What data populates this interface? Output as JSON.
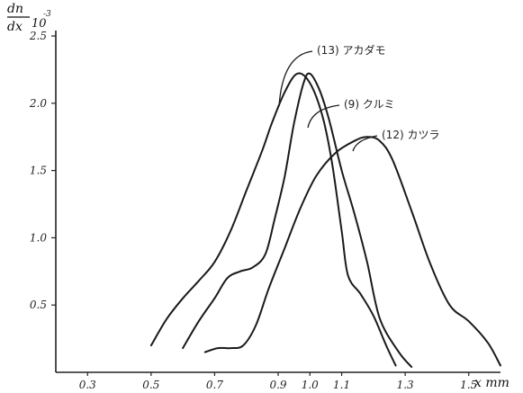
{
  "chart_data": {
    "type": "line",
    "title": "",
    "ylabel_num": "dn",
    "ylabel_den": "dx",
    "ylabel_exp": "10",
    "ylabel_exp_sup": "-3",
    "xlabel": "x mm",
    "xlim": [
      0.2,
      1.6
    ],
    "ylim": [
      0,
      2.5
    ],
    "x_ticks": [
      "0.3",
      "0.5",
      "0.7",
      "0.9",
      "1.0",
      "1.1",
      "1.3",
      "1.5"
    ],
    "y_ticks": [
      "0.5",
      "1.0",
      "1.5",
      "2.0",
      "2.5"
    ],
    "y_tick_display": [
      "0.5",
      "1.0",
      "1.5",
      "2.0",
      "2.5"
    ],
    "grid": false,
    "series": [
      {
        "name": "(13) アカダモ",
        "points": [
          [
            0.5,
            0.2
          ],
          [
            0.55,
            0.4
          ],
          [
            0.6,
            0.55
          ],
          [
            0.65,
            0.68
          ],
          [
            0.7,
            0.82
          ],
          [
            0.75,
            1.05
          ],
          [
            0.8,
            1.35
          ],
          [
            0.85,
            1.65
          ],
          [
            0.88,
            1.85
          ],
          [
            0.92,
            2.08
          ],
          [
            0.96,
            2.22
          ],
          [
            1.0,
            2.15
          ],
          [
            1.04,
            1.9
          ],
          [
            1.07,
            1.55
          ],
          [
            1.1,
            1.05
          ],
          [
            1.12,
            0.72
          ],
          [
            1.16,
            0.58
          ],
          [
            1.2,
            0.42
          ],
          [
            1.24,
            0.2
          ],
          [
            1.27,
            0.05
          ]
        ]
      },
      {
        "name": "(9) クルミ",
        "points": [
          [
            0.6,
            0.18
          ],
          [
            0.65,
            0.38
          ],
          [
            0.7,
            0.55
          ],
          [
            0.74,
            0.7
          ],
          [
            0.78,
            0.75
          ],
          [
            0.82,
            0.78
          ],
          [
            0.86,
            0.88
          ],
          [
            0.89,
            1.15
          ],
          [
            0.92,
            1.45
          ],
          [
            0.95,
            1.85
          ],
          [
            0.98,
            2.15
          ],
          [
            1.0,
            2.22
          ],
          [
            1.03,
            2.1
          ],
          [
            1.06,
            1.88
          ],
          [
            1.1,
            1.5
          ],
          [
            1.14,
            1.18
          ],
          [
            1.18,
            0.82
          ],
          [
            1.22,
            0.4
          ],
          [
            1.28,
            0.15
          ],
          [
            1.32,
            0.04
          ]
        ]
      },
      {
        "name": "(12) カツラ",
        "points": [
          [
            0.67,
            0.15
          ],
          [
            0.71,
            0.18
          ],
          [
            0.75,
            0.18
          ],
          [
            0.79,
            0.2
          ],
          [
            0.83,
            0.35
          ],
          [
            0.87,
            0.62
          ],
          [
            0.92,
            0.92
          ],
          [
            0.97,
            1.22
          ],
          [
            1.02,
            1.46
          ],
          [
            1.08,
            1.63
          ],
          [
            1.14,
            1.72
          ],
          [
            1.18,
            1.75
          ],
          [
            1.22,
            1.72
          ],
          [
            1.26,
            1.58
          ],
          [
            1.32,
            1.2
          ],
          [
            1.38,
            0.8
          ],
          [
            1.44,
            0.5
          ],
          [
            1.5,
            0.38
          ],
          [
            1.56,
            0.22
          ],
          [
            1.6,
            0.05
          ]
        ]
      }
    ]
  }
}
